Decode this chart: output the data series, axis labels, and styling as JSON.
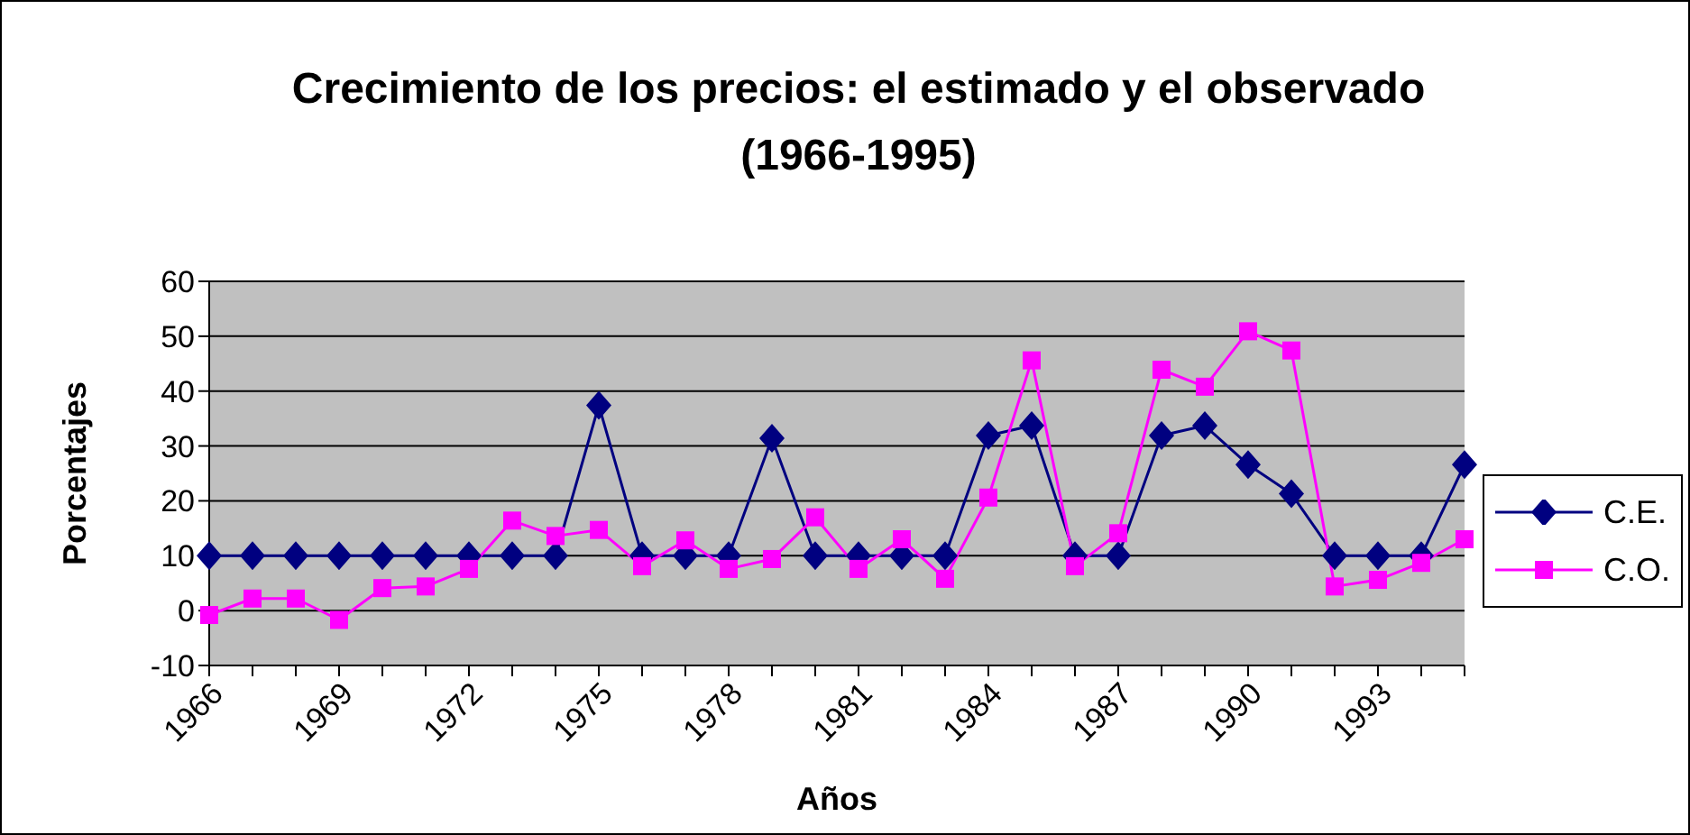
{
  "chart_data": {
    "type": "line",
    "title": "Crecimiento de los precios: el estimado y el observado (1966-1995)",
    "xlabel": "Años",
    "ylabel": "Porcentajes",
    "categories": [
      "1966",
      null,
      null,
      "1969",
      null,
      null,
      "1972",
      null,
      null,
      "1975",
      null,
      null,
      "1978",
      null,
      null,
      "1981",
      null,
      null,
      "1984",
      null,
      null,
      "1987",
      null,
      null,
      "1990",
      null,
      null,
      "1993",
      null,
      null
    ],
    "series": [
      {
        "name": "C.E.",
        "color": "#000080",
        "marker": "diamond",
        "values": [
          10,
          10,
          10,
          10,
          10,
          10,
          10,
          10,
          10,
          37.4,
          10,
          10,
          10,
          31.4,
          10,
          10,
          10,
          10,
          31.9,
          33.7,
          10,
          10,
          31.9,
          33.7,
          26.6,
          21.3,
          10,
          10,
          10,
          26.6
        ]
      },
      {
        "name": "C.O.",
        "color": "#ff00ff",
        "marker": "square",
        "values": [
          -0.8,
          2.2,
          2.2,
          -1.7,
          4.1,
          4.4,
          7.6,
          16.4,
          13.6,
          14.7,
          8.1,
          12.8,
          7.6,
          9.4,
          17.0,
          7.6,
          13.0,
          5.8,
          20.6,
          45.6,
          8.1,
          14.1,
          43.9,
          40.8,
          50.9,
          47.4,
          4.4,
          5.6,
          8.7,
          13.0
        ]
      }
    ],
    "ylim": [
      -10,
      60
    ],
    "yticks": [
      -10,
      0,
      10,
      20,
      30,
      40,
      50,
      60
    ],
    "grid": "y",
    "legend": "right",
    "line_style": "solid"
  }
}
